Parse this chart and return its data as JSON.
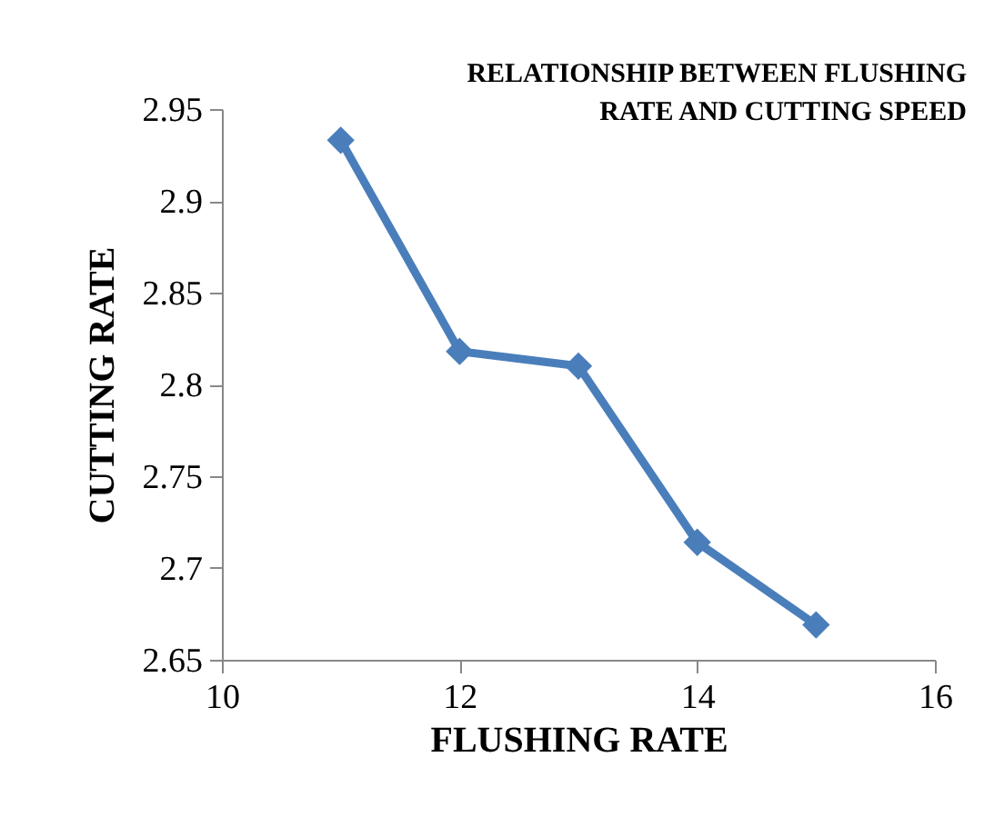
{
  "chart_data": {
    "type": "line",
    "title": [
      "RELATIONSHIP BETWEEN FLUSHING",
      "RATE AND CUTTING SPEED"
    ],
    "xlabel": "FLUSHING RATE",
    "ylabel": "CUTTING RATE",
    "x": [
      11,
      12,
      13,
      14,
      15
    ],
    "series": [
      {
        "color": "#4a7ebb",
        "values": [
          2.933,
          2.818,
          2.81,
          2.714,
          2.669
        ]
      }
    ],
    "xlim": [
      10,
      16
    ],
    "xticks": [
      10,
      12,
      14,
      16
    ],
    "ylim": [
      2.65,
      2.95
    ],
    "yticks": [
      2.65,
      2.7,
      2.75,
      2.8,
      2.85,
      2.9,
      2.95
    ],
    "grid": false,
    "marker": "diamond",
    "line_style": "solid"
  }
}
